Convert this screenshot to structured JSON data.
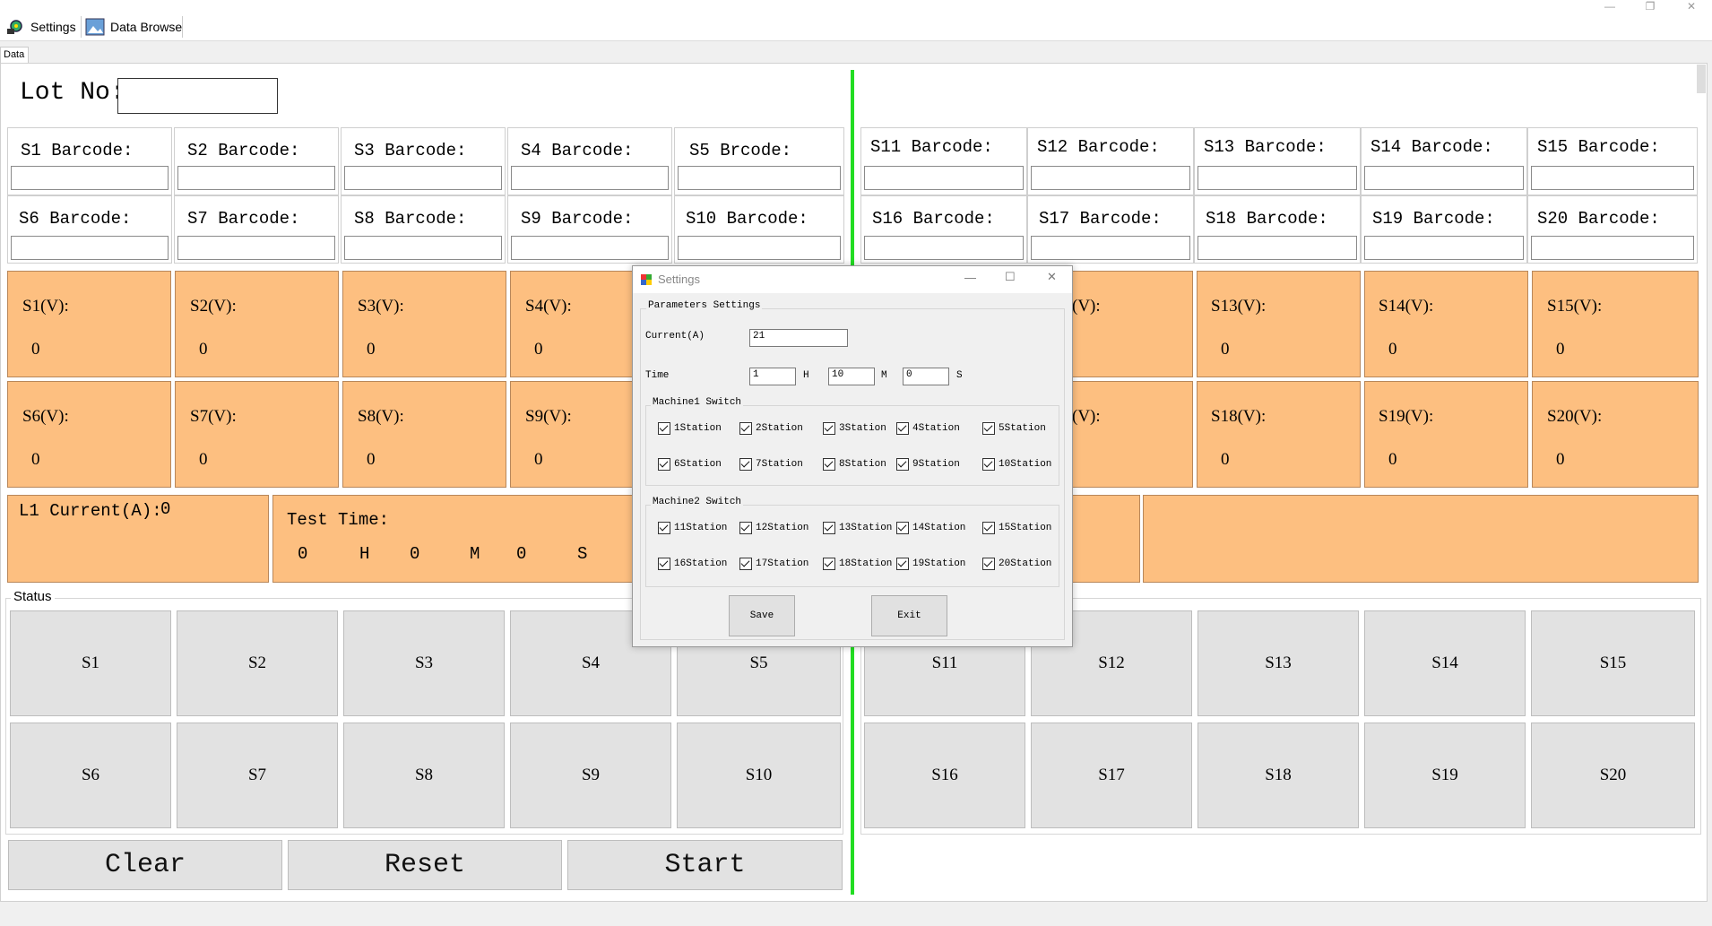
{
  "toolbar": {
    "settings_label": "Settings",
    "data_browse_label": "Data Browse"
  },
  "tab": {
    "label": "Data"
  },
  "lot": {
    "label": "Lot No:",
    "value": ""
  },
  "barcodes_left_row1": [
    "S1 Barcode:",
    "S2 Barcode:",
    "S3 Barcode:",
    "S4 Barcode:",
    "S5 Brcode:"
  ],
  "barcodes_left_row2": [
    "S6 Barcode:",
    "S7 Barcode:",
    "S8 Barcode:",
    "S9 Barcode:",
    "S10 Barcode:"
  ],
  "barcodes_right_row1": [
    "S11 Barcode:",
    "S12 Barcode:",
    "S13 Barcode:",
    "S14 Barcode:",
    "S15 Barcode:"
  ],
  "barcodes_right_row2": [
    "S16 Barcode:",
    "S17 Barcode:",
    "S18 Barcode:",
    "S19 Barcode:",
    "S20 Barcode:"
  ],
  "volts": {
    "row1": [
      {
        "label": "S1(V):",
        "value": "0"
      },
      {
        "label": "S2(V):",
        "value": "0"
      },
      {
        "label": "S3(V):",
        "value": "0"
      },
      {
        "label": "S4(V):",
        "value": "0"
      }
    ],
    "row2": [
      {
        "label": "S6(V):",
        "value": "0"
      },
      {
        "label": "S7(V):",
        "value": "0"
      },
      {
        "label": "S8(V):",
        "value": "0"
      },
      {
        "label": "S9(V):",
        "value": "0"
      }
    ],
    "row1_right": [
      {
        "label": "(V):",
        "value": ""
      },
      {
        "label": "S13(V):",
        "value": "0"
      },
      {
        "label": "S14(V):",
        "value": "0"
      },
      {
        "label": "S15(V):",
        "value": "0"
      }
    ],
    "row2_right": [
      {
        "label": "(V):",
        "value": ""
      },
      {
        "label": "S18(V):",
        "value": "0"
      },
      {
        "label": "S19(V):",
        "value": "0"
      },
      {
        "label": "S20(V):",
        "value": "0"
      }
    ]
  },
  "current": {
    "label": "L1 Current(A):",
    "value": "0"
  },
  "test_time": {
    "label": "Test Time:",
    "h": "0",
    "h_unit": "H",
    "m": "0",
    "m_unit": "M",
    "s": "0",
    "s_unit": "S"
  },
  "status": {
    "title": "Status",
    "row1": [
      "S1",
      "S2",
      "S3",
      "S4",
      "S5",
      "S11",
      "S12",
      "S13",
      "S14",
      "S15"
    ],
    "row2": [
      "S6",
      "S7",
      "S8",
      "S9",
      "S10",
      "S16",
      "S17",
      "S18",
      "S19",
      "S20"
    ]
  },
  "actions": {
    "clear": "Clear",
    "reset": "Reset",
    "start": "Start"
  },
  "dialog": {
    "title": "Settings",
    "group_title": "Parameters Settings",
    "current_label": "Current(A)",
    "current_value": "21",
    "time_label": "Time",
    "time_h": "1",
    "time_h_unit": "H",
    "time_m": "10",
    "time_m_unit": "M",
    "time_s": "0",
    "time_s_unit": "S",
    "machine1_title": "Machine1 Switch",
    "machine1_row1": [
      "1Station",
      "2Station",
      "3Station",
      "4Station",
      "5Station"
    ],
    "machine1_row2": [
      "6Station",
      "7Station",
      "8Station",
      "9Station",
      "10Station"
    ],
    "machine2_title": "Machine2 Switch",
    "machine2_row1": [
      "11Station",
      "12Station",
      "13Station",
      "14Station",
      "15Station"
    ],
    "machine2_row2": [
      "16Station",
      "17Station",
      "18Station",
      "19Station",
      "20Station"
    ],
    "save": "Save",
    "exit": "Exit"
  },
  "colors": {
    "voltage_cell": "#fdbf80",
    "divider": "#22dd22",
    "status_button": "#e2e2e2"
  }
}
